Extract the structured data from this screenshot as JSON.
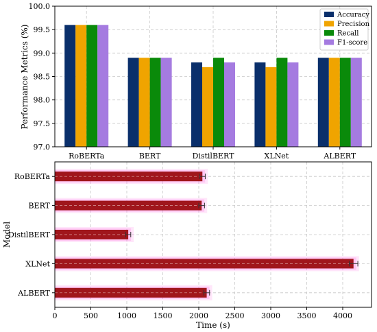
{
  "chart_data": [
    {
      "type": "bar",
      "categories": [
        "RoBERTa",
        "BERT",
        "DistilBERT",
        "XLNet",
        "ALBERT"
      ],
      "series": [
        {
          "name": "Accuracy",
          "color": "#0a2f6b",
          "values": [
            99.6,
            98.9,
            98.8,
            98.8,
            98.9
          ]
        },
        {
          "name": "Precision",
          "color": "#f0a400",
          "values": [
            99.6,
            98.9,
            98.7,
            98.7,
            98.9
          ]
        },
        {
          "name": "Recall",
          "color": "#0a8a0a",
          "values": [
            99.6,
            98.9,
            98.9,
            98.9,
            98.9
          ]
        },
        {
          "name": "F1-score",
          "color": "#a57be0",
          "values": [
            99.6,
            98.9,
            98.8,
            98.8,
            98.9
          ]
        }
      ],
      "xlabel": "",
      "ylabel": "Performance Metrics (%)",
      "ylim": [
        97.0,
        100.0
      ],
      "yticks": [
        97.0,
        97.5,
        98.0,
        98.5,
        99.0,
        99.5,
        100.0
      ],
      "ytick_labels": [
        "97.0",
        "97.5",
        "98.0",
        "98.5",
        "99.0",
        "99.5",
        "100.0"
      ],
      "grid": true,
      "legend_position": "top-right"
    },
    {
      "type": "bar",
      "orientation": "horizontal",
      "categories": [
        "RoBERTa",
        "BERT",
        "DistilBERT",
        "XLNet",
        "ALBERT"
      ],
      "values": [
        2050,
        2040,
        1020,
        4150,
        2110
      ],
      "error": [
        40,
        40,
        35,
        60,
        40
      ],
      "bar_color": "#a0161c",
      "glow_color": "#ff66e0",
      "xlabel": "Time (s)",
      "ylabel": "Model",
      "xlim": [
        0,
        4400
      ],
      "xticks": [
        0,
        500,
        1000,
        1500,
        2000,
        2500,
        3000,
        3500,
        4000
      ],
      "xtick_labels": [
        "0",
        "500",
        "1000",
        "1500",
        "2000",
        "2500",
        "3000",
        "3500",
        "4000"
      ],
      "grid": true
    }
  ]
}
